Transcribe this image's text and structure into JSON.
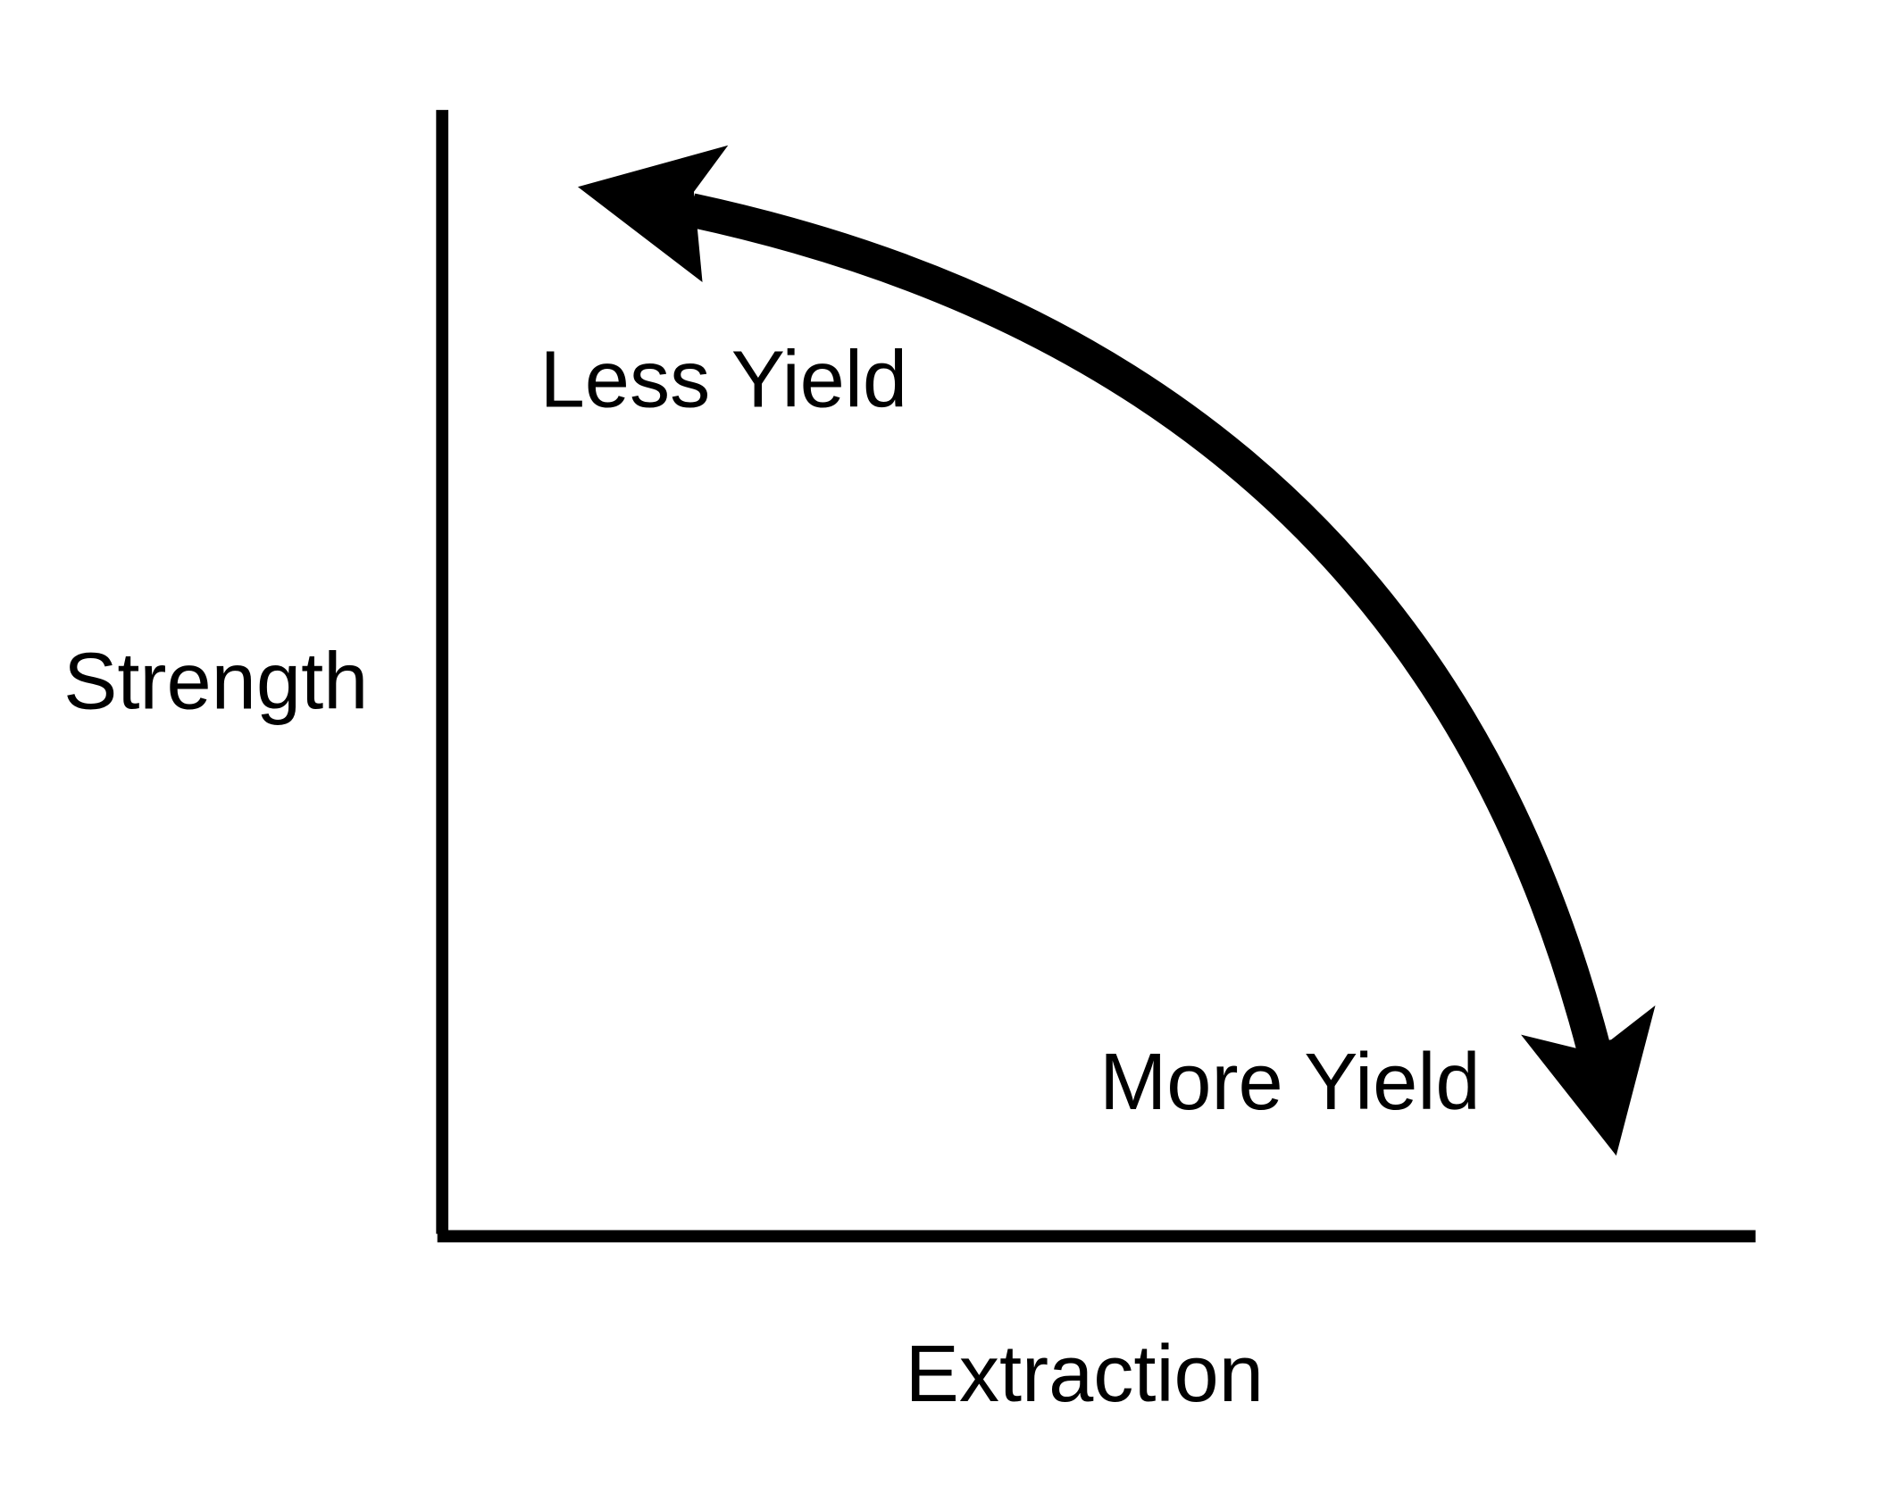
{
  "axes": {
    "y_label": "Strength",
    "x_label": "Extraction"
  },
  "annotations": {
    "top": "Less Yield",
    "bottom": "More Yield"
  }
}
